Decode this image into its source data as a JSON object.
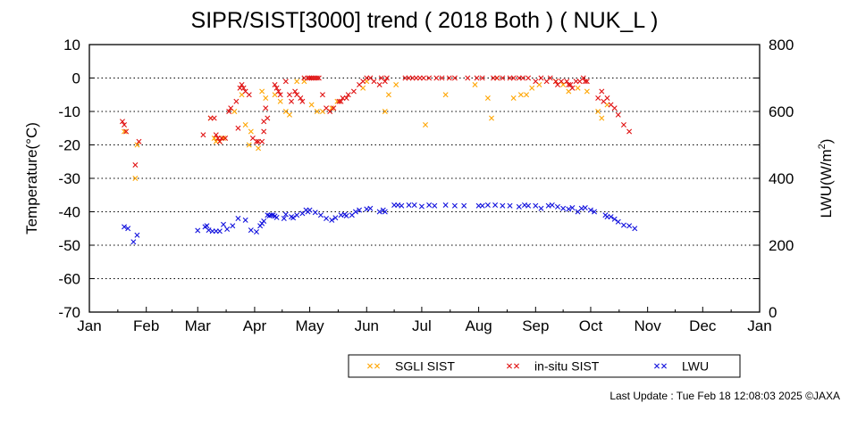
{
  "chart_data": {
    "type": "scatter",
    "title": "SIPR/SIST[3000] trend ( 2018 Both ) ( NUK_L )",
    "ylabel": "Temperature(°C)",
    "y2label_main": "LWU(W/m",
    "y2label_sup": "2",
    "y2label_end": ")",
    "ylim": [
      -70,
      10
    ],
    "y2lim": [
      0,
      800
    ],
    "yticks": [
      "10",
      "0",
      "-10",
      "-20",
      "-30",
      "-40",
      "-50",
      "-60",
      "-70"
    ],
    "y2ticks": [
      "800",
      "600",
      "400",
      "200",
      "0"
    ],
    "xlim_day": [
      1,
      366
    ],
    "xticks": [
      "Jan",
      "Feb",
      "Mar",
      "Apr",
      "May",
      "Jun",
      "Jul",
      "Aug",
      "Sep",
      "Oct",
      "Nov",
      "Dec",
      "Jan"
    ],
    "x_unit": "day of year",
    "grid": "dotted horizontal",
    "legend": "bottom",
    "series": [
      {
        "name": "SGLI SIST",
        "axis": "left",
        "color": "#ffa500",
        "marker": "×",
        "points": [
          [
            20,
            -16
          ],
          [
            26,
            -30
          ],
          [
            27,
            -20
          ],
          [
            67,
            -12
          ],
          [
            69,
            -18
          ],
          [
            70,
            -19
          ],
          [
            72,
            -19
          ],
          [
            74,
            -18
          ],
          [
            80,
            -10
          ],
          [
            84,
            -5
          ],
          [
            86,
            -14
          ],
          [
            88,
            -20
          ],
          [
            89,
            -16
          ],
          [
            93,
            -21
          ],
          [
            95,
            -4
          ],
          [
            97,
            -6
          ],
          [
            102,
            -5
          ],
          [
            105,
            -7
          ],
          [
            108,
            -10
          ],
          [
            110,
            -11
          ],
          [
            114,
            -1
          ],
          [
            118,
            -1
          ],
          [
            122,
            -8
          ],
          [
            125,
            -10
          ],
          [
            128,
            -10
          ],
          [
            133,
            -9
          ],
          [
            136,
            -7
          ],
          [
            150,
            -3
          ],
          [
            152,
            -1
          ],
          [
            162,
            -10
          ],
          [
            164,
            -5
          ],
          [
            168,
            -2
          ],
          [
            184,
            -14
          ],
          [
            195,
            -5
          ],
          [
            211,
            -2
          ],
          [
            218,
            -6
          ],
          [
            220,
            -12
          ],
          [
            223,
            0
          ],
          [
            232,
            -6
          ],
          [
            236,
            -5
          ],
          [
            239,
            -5
          ],
          [
            242,
            -3
          ],
          [
            246,
            -2
          ],
          [
            255,
            -1
          ],
          [
            259,
            -2
          ],
          [
            262,
            -4
          ],
          [
            267,
            -3
          ],
          [
            272,
            -4
          ],
          [
            278,
            -10
          ],
          [
            280,
            -12
          ],
          [
            283,
            -8
          ]
        ]
      },
      {
        "name": "in-situ SIST",
        "axis": "left",
        "color": "#e01010",
        "marker": "×",
        "points": [
          [
            19,
            -13
          ],
          [
            20,
            -14
          ],
          [
            21,
            -16
          ],
          [
            26,
            -26
          ],
          [
            28,
            -19
          ],
          [
            63,
            -17
          ],
          [
            67,
            -12
          ],
          [
            69,
            -12
          ],
          [
            70,
            -17
          ],
          [
            71,
            -18
          ],
          [
            72,
            -19
          ],
          [
            73,
            -18
          ],
          [
            75,
            -18
          ],
          [
            77,
            -10
          ],
          [
            78,
            -9
          ],
          [
            81,
            -7
          ],
          [
            82,
            -15
          ],
          [
            83,
            -3
          ],
          [
            84,
            -2
          ],
          [
            85,
            -3
          ],
          [
            86,
            -4
          ],
          [
            88,
            -5
          ],
          [
            90,
            -18
          ],
          [
            92,
            -19
          ],
          [
            93,
            -19
          ],
          [
            95,
            -19
          ],
          [
            96,
            -13
          ],
          [
            96,
            -16
          ],
          [
            97,
            -9
          ],
          [
            98,
            -12
          ],
          [
            102,
            -2
          ],
          [
            103,
            -3
          ],
          [
            104,
            -4
          ],
          [
            105,
            -5
          ],
          [
            108,
            -1
          ],
          [
            110,
            -5
          ],
          [
            111,
            -7
          ],
          [
            113,
            -4
          ],
          [
            114,
            -5
          ],
          [
            116,
            -6
          ],
          [
            117,
            -7
          ],
          [
            118,
            0
          ],
          [
            120,
            0
          ],
          [
            121,
            0
          ],
          [
            122,
            0
          ],
          [
            123,
            0
          ],
          [
            124,
            0
          ],
          [
            125,
            0
          ],
          [
            126,
            0
          ],
          [
            128,
            -5
          ],
          [
            130,
            -9
          ],
          [
            132,
            -10
          ],
          [
            134,
            -9
          ],
          [
            137,
            -7
          ],
          [
            138,
            -7
          ],
          [
            139,
            -6
          ],
          [
            141,
            -6
          ],
          [
            142,
            -5
          ],
          [
            145,
            -4
          ],
          [
            148,
            -2
          ],
          [
            150,
            -1
          ],
          [
            152,
            0
          ],
          [
            154,
            0
          ],
          [
            156,
            -1
          ],
          [
            159,
            -2
          ],
          [
            160,
            0
          ],
          [
            162,
            -1
          ],
          [
            163,
            0
          ],
          [
            173,
            0
          ],
          [
            175,
            0
          ],
          [
            177,
            0
          ],
          [
            179,
            0
          ],
          [
            181,
            0
          ],
          [
            183,
            0
          ],
          [
            186,
            0
          ],
          [
            190,
            0
          ],
          [
            193,
            0
          ],
          [
            197,
            0
          ],
          [
            200,
            0
          ],
          [
            207,
            0
          ],
          [
            212,
            0
          ],
          [
            215,
            0
          ],
          [
            221,
            0
          ],
          [
            223,
            0
          ],
          [
            226,
            0
          ],
          [
            230,
            0
          ],
          [
            232,
            0
          ],
          [
            235,
            0
          ],
          [
            237,
            0
          ],
          [
            240,
            0
          ],
          [
            244,
            -1
          ],
          [
            247,
            0
          ],
          [
            250,
            -1
          ],
          [
            252,
            0
          ],
          [
            255,
            -1
          ],
          [
            256,
            -2
          ],
          [
            258,
            -1
          ],
          [
            261,
            -1
          ],
          [
            262,
            -2
          ],
          [
            263,
            -2
          ],
          [
            264,
            -3
          ],
          [
            266,
            -1
          ],
          [
            268,
            -1
          ],
          [
            270,
            0
          ],
          [
            271,
            -1
          ],
          [
            272,
            -1
          ],
          [
            278,
            -6
          ],
          [
            280,
            -4
          ],
          [
            281,
            -7
          ],
          [
            283,
            -6
          ],
          [
            285,
            -8
          ],
          [
            287,
            -9
          ],
          [
            289,
            -11
          ],
          [
            292,
            -14
          ],
          [
            295,
            -16
          ]
        ]
      },
      {
        "name": "LWU",
        "axis": "right",
        "color": "#1010dd",
        "marker": "×",
        "points": [
          [
            20,
            255
          ],
          [
            22,
            250
          ],
          [
            25,
            210
          ],
          [
            27,
            230
          ],
          [
            60,
            244
          ],
          [
            64,
            255
          ],
          [
            65,
            258
          ],
          [
            66,
            245
          ],
          [
            68,
            242
          ],
          [
            70,
            242
          ],
          [
            72,
            242
          ],
          [
            74,
            262
          ],
          [
            76,
            248
          ],
          [
            79,
            258
          ],
          [
            82,
            280
          ],
          [
            86,
            275
          ],
          [
            89,
            245
          ],
          [
            92,
            240
          ],
          [
            94,
            258
          ],
          [
            95,
            265
          ],
          [
            96,
            272
          ],
          [
            98,
            290
          ],
          [
            99,
            288
          ],
          [
            100,
            290
          ],
          [
            101,
            290
          ],
          [
            102,
            287
          ],
          [
            103,
            283
          ],
          [
            107,
            280
          ],
          [
            108,
            292
          ],
          [
            111,
            285
          ],
          [
            112,
            282
          ],
          [
            114,
            290
          ],
          [
            117,
            295
          ],
          [
            119,
            305
          ],
          [
            120,
            300
          ],
          [
            121,
            305
          ],
          [
            124,
            298
          ],
          [
            127,
            290
          ],
          [
            130,
            280
          ],
          [
            133,
            275
          ],
          [
            135,
            282
          ],
          [
            138,
            290
          ],
          [
            140,
            292
          ],
          [
            141,
            288
          ],
          [
            144,
            290
          ],
          [
            146,
            300
          ],
          [
            148,
            305
          ],
          [
            152,
            308
          ],
          [
            154,
            310
          ],
          [
            159,
            300
          ],
          [
            161,
            305
          ],
          [
            162,
            300
          ],
          [
            167,
            320
          ],
          [
            169,
            320
          ],
          [
            171,
            318
          ],
          [
            175,
            320
          ],
          [
            178,
            320
          ],
          [
            182,
            316
          ],
          [
            186,
            320
          ],
          [
            189,
            318
          ],
          [
            195,
            320
          ],
          [
            200,
            318
          ],
          [
            205,
            318
          ],
          [
            213,
            318
          ],
          [
            215,
            318
          ],
          [
            218,
            320
          ],
          [
            222,
            320
          ],
          [
            226,
            318
          ],
          [
            230,
            318
          ],
          [
            235,
            315
          ],
          [
            238,
            320
          ],
          [
            240,
            318
          ],
          [
            244,
            318
          ],
          [
            247,
            310
          ],
          [
            251,
            318
          ],
          [
            253,
            320
          ],
          [
            256,
            315
          ],
          [
            259,
            310
          ],
          [
            262,
            308
          ],
          [
            264,
            312
          ],
          [
            267,
            300
          ],
          [
            269,
            310
          ],
          [
            271,
            312
          ],
          [
            274,
            305
          ],
          [
            276,
            300
          ],
          [
            282,
            290
          ],
          [
            283,
            285
          ],
          [
            285,
            285
          ],
          [
            287,
            278
          ],
          [
            289,
            270
          ],
          [
            292,
            260
          ],
          [
            295,
            258
          ],
          [
            298,
            250
          ]
        ]
      }
    ]
  },
  "footer": {
    "text": "Last Update : Tue Feb 18 12:08:03 2025  ©JAXA"
  }
}
